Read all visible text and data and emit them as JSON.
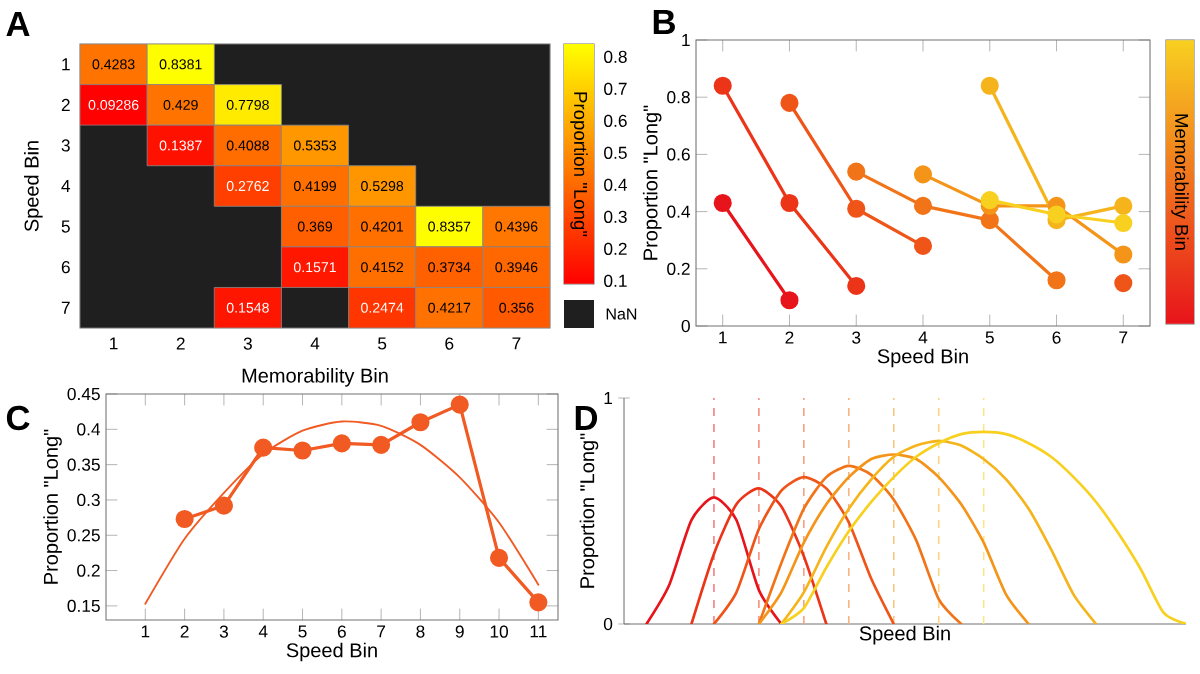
{
  "chart_data": [
    {
      "type": "heatmap",
      "annotations": [
        "A",
        "NaN"
      ],
      "xlabel": "Memorability Bin",
      "ylabel": "Speed Bin",
      "clabel": "Proportion \"Long\"",
      "categories": [
        "1",
        "2",
        "3",
        "4",
        "5",
        "6",
        "7"
      ],
      "y_categories": [
        "1",
        "2",
        "3",
        "4",
        "5",
        "6",
        "7"
      ],
      "cells": [
        [
          0.4283,
          0.8381,
          null,
          null,
          null,
          null,
          null
        ],
        [
          0.09286,
          0.429,
          0.7798,
          null,
          null,
          null,
          null
        ],
        [
          null,
          0.1387,
          0.4088,
          0.5353,
          null,
          null,
          null
        ],
        [
          null,
          null,
          0.2762,
          0.4199,
          0.5298,
          null,
          null
        ],
        [
          null,
          null,
          null,
          0.369,
          0.4201,
          0.8357,
          0.4396
        ],
        [
          null,
          null,
          null,
          0.1571,
          0.4152,
          0.3734,
          0.3946
        ],
        [
          null,
          null,
          0.1548,
          null,
          0.2474,
          0.4217,
          0.356
        ]
      ],
      "cell_labels": [
        [
          "0.4283",
          "0.8381",
          null,
          null,
          null,
          null,
          null
        ],
        [
          "0.09286",
          "0.429",
          "0.7798",
          null,
          null,
          null,
          null
        ],
        [
          null,
          "0.1387",
          "0.4088",
          "0.5353",
          null,
          null,
          null
        ],
        [
          null,
          null,
          "0.2762",
          "0.4199",
          "0.5298",
          null,
          null
        ],
        [
          null,
          null,
          null,
          "0.369",
          "0.4201",
          "0.8357",
          "0.4396"
        ],
        [
          null,
          null,
          null,
          "0.1571",
          "0.4152",
          "0.3734",
          "0.3946"
        ],
        [
          null,
          null,
          "0.1548",
          null,
          "0.2474",
          "0.4217",
          "0.356"
        ]
      ],
      "clim": [
        0.09,
        0.84
      ],
      "cticks": [
        0.1,
        0.2,
        0.3,
        0.4,
        0.5,
        0.6,
        0.7,
        0.8
      ]
    },
    {
      "type": "line",
      "annotations": [
        "B"
      ],
      "xlabel": "Speed Bin",
      "ylabel": "Proportion \"Long\"",
      "clabel": "Memorability Bin",
      "categories": [
        "1",
        "2",
        "3",
        "4",
        "5",
        "6",
        "7"
      ],
      "ylim": [
        0,
        1
      ],
      "yticks": [
        0,
        0.2,
        0.4,
        0.6,
        0.8,
        1
      ],
      "marker": "circle",
      "line_style": "solid",
      "series": [
        {
          "color": "#e8141b",
          "values": [
            0.43,
            0.09,
            null,
            null,
            null,
            null,
            null
          ]
        },
        {
          "color": "#ec3418",
          "values": [
            0.84,
            0.43,
            0.14,
            null,
            null,
            null,
            null
          ]
        },
        {
          "color": "#ef5418",
          "values": [
            null,
            0.78,
            0.41,
            0.28,
            null,
            null,
            0.15
          ]
        },
        {
          "color": "#f27418",
          "values": [
            null,
            null,
            0.54,
            0.42,
            0.37,
            0.16,
            null
          ]
        },
        {
          "color": "#f49418",
          "values": [
            null,
            null,
            null,
            0.53,
            0.42,
            0.42,
            0.25
          ]
        },
        {
          "color": "#f6b41c",
          "values": [
            null,
            null,
            null,
            null,
            0.84,
            0.37,
            0.42
          ]
        },
        {
          "color": "#f8d020",
          "values": [
            null,
            null,
            null,
            null,
            0.44,
            0.39,
            0.36
          ]
        }
      ]
    },
    {
      "type": "line",
      "annotations": [
        "C"
      ],
      "xlabel": "Speed Bin",
      "ylabel": "Proportion \"Long\"",
      "xlim": [
        0,
        11.5
      ],
      "xticks": [
        1,
        2,
        3,
        4,
        5,
        6,
        7,
        8,
        9,
        10,
        11
      ],
      "ylim": [
        0.13,
        0.45
      ],
      "yticks": [
        0.15,
        0.2,
        0.25,
        0.3,
        0.35,
        0.4,
        0.45
      ],
      "line_style": "solid",
      "series": [
        {
          "color": "#f15a22",
          "marker": "circle",
          "x": [
            2,
            3,
            4,
            5,
            6,
            7,
            8,
            9,
            10,
            11
          ],
          "values": [
            0.273,
            0.292,
            0.374,
            0.37,
            0.38,
            0.378,
            0.41,
            0.435,
            0.218,
            0.155
          ]
        },
        {
          "color": "#f15a22",
          "marker": "none",
          "x": [
            1,
            2,
            3,
            4,
            5,
            6,
            7,
            8,
            9,
            10,
            11
          ],
          "values": [
            0.153,
            0.245,
            0.31,
            0.365,
            0.398,
            0.411,
            0.405,
            0.378,
            0.332,
            0.268,
            0.18
          ]
        }
      ]
    },
    {
      "type": "line",
      "annotations": [
        "D"
      ],
      "xlabel": "Speed Bin",
      "ylabel": "Proportion \"Long\"",
      "categories": [
        null,
        null,
        null,
        null,
        null,
        null,
        null,
        null,
        null,
        null,
        null,
        null,
        null,
        null,
        null,
        null,
        null,
        null,
        null,
        null,
        null,
        null,
        null,
        null,
        null,
        null
      ],
      "ylim": [
        0,
        1
      ],
      "yticks": [
        0,
        1
      ],
      "line_style": "solid",
      "series": [
        {
          "color": "#e8141b",
          "values": [
            null,
            0,
            0.17,
            0.46,
            0.56,
            0.46,
            0.15,
            0,
            null,
            null,
            null,
            null,
            null,
            null,
            null,
            null,
            null,
            null,
            null,
            null,
            null,
            null,
            null,
            null,
            null,
            null
          ]
        },
        {
          "color": "#ec3418",
          "values": [
            null,
            null,
            null,
            0,
            0.31,
            0.53,
            0.6,
            0.52,
            0.3,
            0,
            null,
            null,
            null,
            null,
            null,
            null,
            null,
            null,
            null,
            null,
            null,
            null,
            null,
            null,
            null,
            null
          ]
        },
        {
          "color": "#ef5418",
          "values": [
            null,
            null,
            null,
            null,
            0,
            0.14,
            0.42,
            0.59,
            0.65,
            0.6,
            0.45,
            0.2,
            0,
            null,
            null,
            null,
            null,
            null,
            null,
            null,
            null,
            null,
            null,
            null,
            null,
            null
          ]
        },
        {
          "color": "#f27418",
          "values": [
            null,
            null,
            null,
            null,
            null,
            null,
            0,
            0.27,
            0.51,
            0.65,
            0.7,
            0.66,
            0.55,
            0.37,
            0.11,
            0,
            null,
            null,
            null,
            null,
            null,
            null,
            null,
            null,
            null,
            null
          ]
        },
        {
          "color": "#f49418",
          "values": [
            null,
            null,
            null,
            null,
            null,
            null,
            0,
            0.14,
            0.36,
            0.53,
            0.65,
            0.73,
            0.75,
            0.73,
            0.65,
            0.53,
            0.36,
            0.13,
            0,
            null,
            null,
            null,
            null,
            null,
            null,
            null
          ]
        },
        {
          "color": "#f6b41c",
          "values": [
            null,
            null,
            null,
            null,
            null,
            null,
            null,
            0,
            0.14,
            0.34,
            0.51,
            0.64,
            0.74,
            0.79,
            0.81,
            0.79,
            0.73,
            0.64,
            0.51,
            0.33,
            0.13,
            0,
            null,
            null,
            null,
            null
          ]
        },
        {
          "color": "#f8d020",
          "values": [
            null,
            null,
            null,
            null,
            null,
            null,
            null,
            0,
            0.07,
            0.25,
            0.41,
            0.54,
            0.65,
            0.74,
            0.8,
            0.84,
            0.85,
            0.84,
            0.8,
            0.74,
            0.65,
            0.54,
            0.4,
            0.24,
            0.05,
            0
          ]
        }
      ]
    }
  ]
}
